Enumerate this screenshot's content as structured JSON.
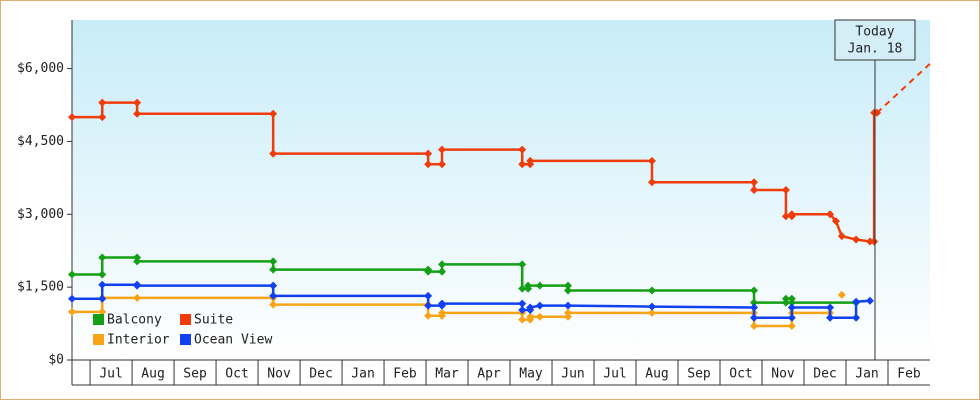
{
  "chart_data": {
    "type": "line",
    "series": [
      {
        "name": "Balcony",
        "color": "#14a014",
        "x": [
          0.57,
          1.29,
          1.29,
          2.12,
          2.12,
          5.36,
          5.36,
          9.05,
          9.05,
          9.38,
          9.38,
          11.29,
          11.29,
          11.43,
          11.43,
          11.71,
          12.38,
          12.38,
          14.38,
          16.81,
          16.81,
          17.57,
          17.57,
          17.71,
          17.71,
          19.24
        ],
        "values": [
          1760,
          1760,
          2110,
          2110,
          2030,
          2030,
          1860,
          1860,
          1820,
          1820,
          1970,
          1970,
          1470,
          1470,
          1530,
          1530,
          1530,
          1430,
          1430,
          1430,
          1180,
          1180,
          1260,
          1260,
          1180,
          1180
        ]
      },
      {
        "name": "Suite",
        "color": "#f03c0a",
        "x": [
          0.57,
          1.29,
          1.29,
          2.12,
          2.12,
          5.36,
          5.36,
          9.05,
          9.05,
          9.38,
          9.38,
          11.29,
          11.29,
          11.48,
          11.48,
          14.38,
          14.38,
          16.81,
          16.81,
          17.57,
          17.57,
          17.71,
          17.71,
          18.62,
          18.76,
          18.9,
          19.24,
          19.57,
          19.67,
          19.67,
          19.74
        ],
        "values": [
          5000,
          5000,
          5300,
          5300,
          5070,
          5070,
          4250,
          4250,
          4030,
          4030,
          4330,
          4330,
          4030,
          4030,
          4100,
          4100,
          3660,
          3660,
          3500,
          3500,
          2960,
          2960,
          3000,
          3000,
          2860,
          2550,
          2480,
          2440,
          2440,
          5090,
          5090
        ],
        "forecast": {
          "x": [
            19.74,
            21
          ],
          "values": [
            5090,
            6100
          ]
        }
      },
      {
        "name": "Interior",
        "color": "#f7a418",
        "x": [
          0.57,
          1.29,
          1.29,
          2.12,
          5.36,
          5.36,
          9.05,
          9.05,
          9.38,
          9.38,
          11.29,
          11.29,
          11.48,
          11.48,
          11.71,
          12.38,
          12.38,
          14.38,
          16.81,
          16.81,
          17.71,
          17.71,
          18.62,
          18.7,
          18.9
        ],
        "values": [
          990,
          990,
          1280,
          1280,
          1280,
          1140,
          1140,
          910,
          910,
          970,
          970,
          830,
          830,
          890,
          890,
          890,
          970,
          970,
          970,
          700,
          700,
          970,
          970,
          null,
          1340
        ]
      },
      {
        "name": "Ocean View",
        "color": "#1040f0",
        "x": [
          0.57,
          1.29,
          1.29,
          2.12,
          2.12,
          5.36,
          5.36,
          9.05,
          9.05,
          9.38,
          9.38,
          11.29,
          11.29,
          11.48,
          11.48,
          11.71,
          12.38,
          14.38,
          16.81,
          16.81,
          17.71,
          17.71,
          18.62,
          18.62,
          19.24,
          19.24,
          19.57
        ],
        "values": [
          1260,
          1260,
          1550,
          1550,
          1530,
          1530,
          1320,
          1320,
          1120,
          1120,
          1160,
          1160,
          1030,
          1030,
          1080,
          1120,
          1120,
          1100,
          1080,
          870,
          870,
          1080,
          1080,
          870,
          870,
          1200,
          1220
        ]
      }
    ],
    "xlim": [
      0.57,
      21
    ],
    "xticks": [
      {
        "value": 1.5,
        "label": "Jul"
      },
      {
        "value": 2.5,
        "label": "Aug"
      },
      {
        "value": 3.5,
        "label": "Sep"
      },
      {
        "value": 4.5,
        "label": "Oct"
      },
      {
        "value": 5.5,
        "label": "Nov"
      },
      {
        "value": 6.5,
        "label": "Dec"
      },
      {
        "value": 7.5,
        "label": "Jan"
      },
      {
        "value": 8.5,
        "label": "Feb"
      },
      {
        "value": 9.5,
        "label": "Mar"
      },
      {
        "value": 10.5,
        "label": "Apr"
      },
      {
        "value": 11.5,
        "label": "May"
      },
      {
        "value": 12.5,
        "label": "Jun"
      },
      {
        "value": 13.5,
        "label": "Jul"
      },
      {
        "value": 14.5,
        "label": "Aug"
      },
      {
        "value": 15.5,
        "label": "Sep"
      },
      {
        "value": 16.5,
        "label": "Oct"
      },
      {
        "value": 17.5,
        "label": "Nov"
      },
      {
        "value": 18.5,
        "label": "Dec"
      },
      {
        "value": 19.5,
        "label": "Jan"
      },
      {
        "value": 20.5,
        "label": "Feb"
      }
    ],
    "ylim": [
      0,
      7000
    ],
    "yticks": [
      {
        "value": 0,
        "label": "$0"
      },
      {
        "value": 1500,
        "label": "$1,500"
      },
      {
        "value": 3000,
        "label": "$3,000"
      },
      {
        "value": 4500,
        "label": "$4,500"
      },
      {
        "value": 6000,
        "label": "$6,000"
      }
    ],
    "today": {
      "x": 19.69,
      "label": [
        "Today",
        "Jan. 18"
      ]
    },
    "legend": "lower-left"
  }
}
